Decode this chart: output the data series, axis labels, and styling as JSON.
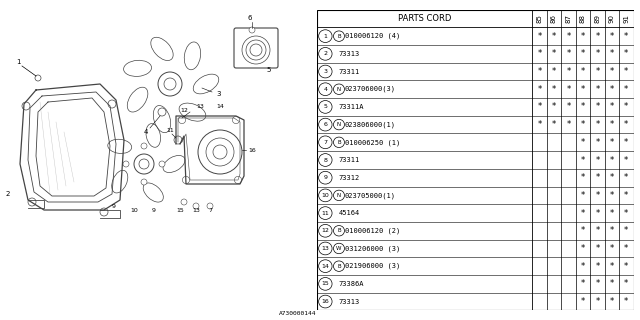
{
  "table_header_main": "PARTS CORD",
  "years": [
    "85",
    "86",
    "87",
    "88",
    "89",
    "90",
    "91"
  ],
  "rows": [
    {
      "num": "1",
      "prefix": "B",
      "code": "010006120",
      "qty": " (4)",
      "marks": [
        1,
        1,
        1,
        1,
        1,
        1,
        1
      ]
    },
    {
      "num": "2",
      "prefix": "",
      "code": "73313",
      "qty": "",
      "marks": [
        1,
        1,
        1,
        1,
        1,
        1,
        1
      ]
    },
    {
      "num": "3",
      "prefix": "",
      "code": "73311",
      "qty": "",
      "marks": [
        1,
        1,
        1,
        1,
        1,
        1,
        1
      ]
    },
    {
      "num": "4",
      "prefix": "N",
      "code": "023706000",
      "qty": "(3)",
      "marks": [
        1,
        1,
        1,
        1,
        1,
        1,
        1
      ]
    },
    {
      "num": "5",
      "prefix": "",
      "code": "73311A",
      "qty": "",
      "marks": [
        1,
        1,
        1,
        1,
        1,
        1,
        1
      ]
    },
    {
      "num": "6",
      "prefix": "N",
      "code": "023806000",
      "qty": "(1)",
      "marks": [
        1,
        1,
        1,
        1,
        1,
        1,
        1
      ]
    },
    {
      "num": "7",
      "prefix": "B",
      "code": "010006250",
      "qty": " (1)",
      "marks": [
        0,
        0,
        0,
        1,
        1,
        1,
        1
      ]
    },
    {
      "num": "8",
      "prefix": "",
      "code": "73311",
      "qty": "",
      "marks": [
        0,
        0,
        0,
        1,
        1,
        1,
        1
      ]
    },
    {
      "num": "9",
      "prefix": "",
      "code": "73312",
      "qty": "",
      "marks": [
        0,
        0,
        0,
        1,
        1,
        1,
        1
      ]
    },
    {
      "num": "10",
      "prefix": "N",
      "code": "023705000",
      "qty": "(1)",
      "marks": [
        0,
        0,
        0,
        1,
        1,
        1,
        1
      ]
    },
    {
      "num": "11",
      "prefix": "",
      "code": "45164",
      "qty": "",
      "marks": [
        0,
        0,
        0,
        1,
        1,
        1,
        1
      ]
    },
    {
      "num": "12",
      "prefix": "B",
      "code": "010006120",
      "qty": " (2)",
      "marks": [
        0,
        0,
        0,
        1,
        1,
        1,
        1
      ]
    },
    {
      "num": "13",
      "prefix": "W",
      "code": "031206000",
      "qty": " (3)",
      "marks": [
        0,
        0,
        0,
        1,
        1,
        1,
        1
      ]
    },
    {
      "num": "14",
      "prefix": "B",
      "code": "021906000",
      "qty": " (3)",
      "marks": [
        0,
        0,
        0,
        1,
        1,
        1,
        1
      ]
    },
    {
      "num": "15",
      "prefix": "",
      "code": "73386A",
      "qty": "",
      "marks": [
        0,
        0,
        0,
        1,
        1,
        1,
        1
      ]
    },
    {
      "num": "16",
      "prefix": "",
      "code": "73313",
      "qty": "",
      "marks": [
        0,
        0,
        0,
        1,
        1,
        1,
        1
      ]
    }
  ],
  "footer": "A730000144",
  "bg_color": "#ffffff",
  "lc": "#444444",
  "lc2": "#888888"
}
